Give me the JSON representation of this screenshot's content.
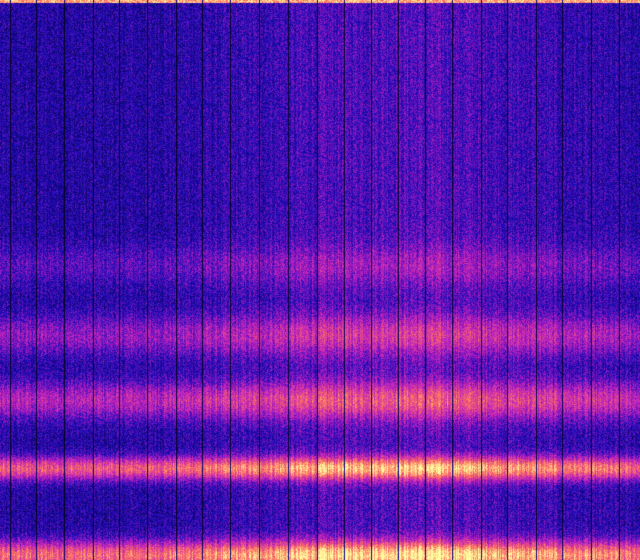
{
  "image": {
    "kind": "spectrogram",
    "colormap": [
      "#000000",
      "#1a0ab8",
      "#c020c0",
      "#ff7060",
      "#ffffa0"
    ]
  }
}
